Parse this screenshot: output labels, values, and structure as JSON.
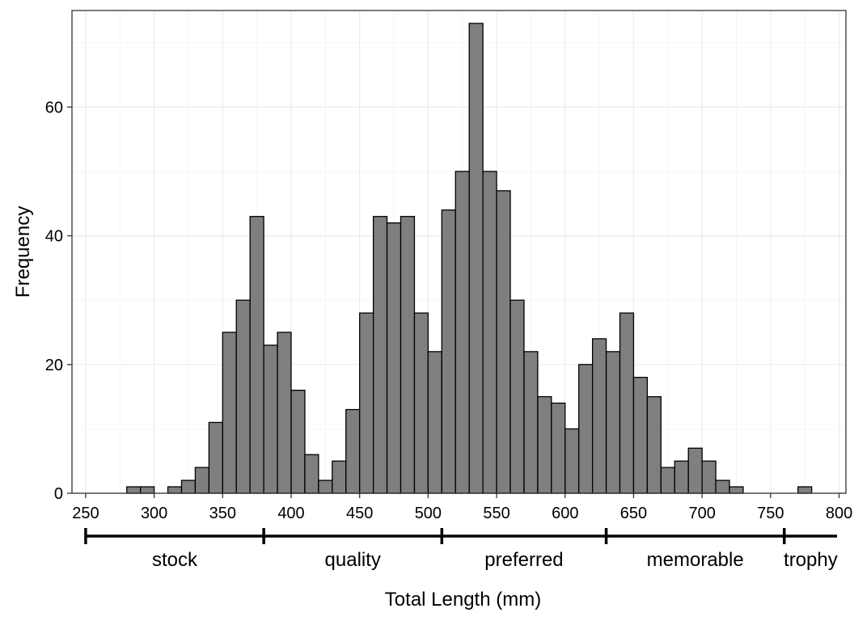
{
  "chart_data": {
    "type": "bar",
    "xlabel": "Total Length (mm)",
    "ylabel": "Frequency",
    "bin_width": 10,
    "xlim": [
      240,
      805
    ],
    "ylim": [
      0,
      75
    ],
    "x_ticks": [
      "250",
      "300",
      "350",
      "400",
      "450",
      "500",
      "550",
      "600",
      "650",
      "700",
      "750",
      "800"
    ],
    "y_ticks": [
      "0",
      "20",
      "40",
      "60"
    ],
    "bins": [
      {
        "start": 280,
        "count": 1
      },
      {
        "start": 290,
        "count": 1
      },
      {
        "start": 300,
        "count": 0
      },
      {
        "start": 310,
        "count": 1
      },
      {
        "start": 320,
        "count": 2
      },
      {
        "start": 330,
        "count": 4
      },
      {
        "start": 340,
        "count": 11
      },
      {
        "start": 350,
        "count": 25
      },
      {
        "start": 360,
        "count": 30
      },
      {
        "start": 370,
        "count": 43
      },
      {
        "start": 380,
        "count": 23
      },
      {
        "start": 390,
        "count": 25
      },
      {
        "start": 400,
        "count": 16
      },
      {
        "start": 410,
        "count": 6
      },
      {
        "start": 420,
        "count": 2
      },
      {
        "start": 430,
        "count": 5
      },
      {
        "start": 440,
        "count": 13
      },
      {
        "start": 450,
        "count": 28
      },
      {
        "start": 460,
        "count": 43
      },
      {
        "start": 470,
        "count": 42
      },
      {
        "start": 480,
        "count": 43
      },
      {
        "start": 490,
        "count": 28
      },
      {
        "start": 500,
        "count": 22
      },
      {
        "start": 510,
        "count": 44
      },
      {
        "start": 520,
        "count": 50
      },
      {
        "start": 530,
        "count": 73
      },
      {
        "start": 540,
        "count": 50
      },
      {
        "start": 550,
        "count": 47
      },
      {
        "start": 560,
        "count": 30
      },
      {
        "start": 570,
        "count": 22
      },
      {
        "start": 580,
        "count": 15
      },
      {
        "start": 590,
        "count": 14
      },
      {
        "start": 600,
        "count": 10
      },
      {
        "start": 610,
        "count": 20
      },
      {
        "start": 620,
        "count": 24
      },
      {
        "start": 630,
        "count": 22
      },
      {
        "start": 640,
        "count": 28
      },
      {
        "start": 650,
        "count": 18
      },
      {
        "start": 660,
        "count": 15
      },
      {
        "start": 670,
        "count": 4
      },
      {
        "start": 680,
        "count": 5
      },
      {
        "start": 690,
        "count": 7
      },
      {
        "start": 700,
        "count": 5
      },
      {
        "start": 710,
        "count": 2
      },
      {
        "start": 720,
        "count": 1
      },
      {
        "start": 770,
        "count": 1
      }
    ],
    "categories": [
      {
        "label": "stock",
        "from": 250,
        "to": 380
      },
      {
        "label": "quality",
        "from": 380,
        "to": 510
      },
      {
        "label": "preferred",
        "from": 510,
        "to": 630
      },
      {
        "label": "memorable",
        "from": 630,
        "to": 760
      },
      {
        "label": "trophy",
        "from": 760,
        "to": 810
      }
    ],
    "grid": true
  }
}
